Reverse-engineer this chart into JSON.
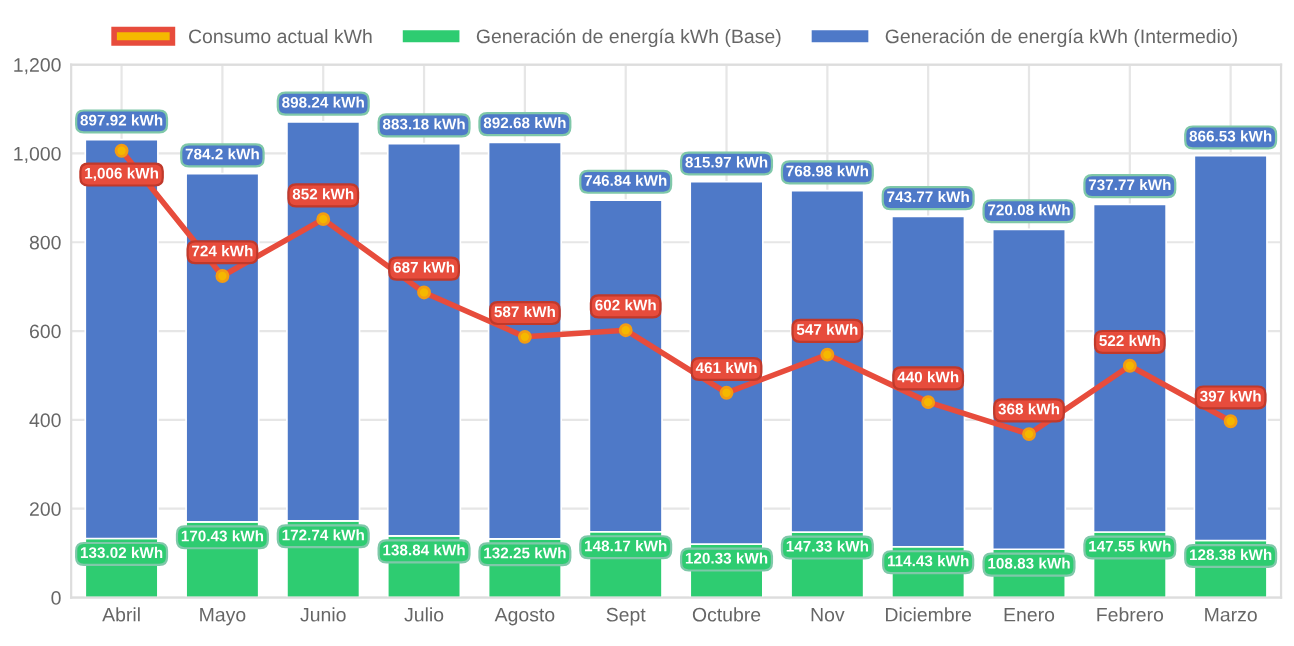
{
  "chart_data": {
    "type": "bar",
    "stacked": true,
    "categories": [
      "Abril",
      "Mayo",
      "Junio",
      "Julio",
      "Agosto",
      "Sept",
      "Octubre",
      "Nov",
      "Diciembre",
      "Enero",
      "Febrero",
      "Marzo"
    ],
    "series": [
      {
        "name": "Consumo actual kWh",
        "type": "line",
        "color": "#e74c3c",
        "marker": "circle",
        "values": [
          1006,
          724,
          852,
          687,
          587,
          602,
          461,
          547,
          440,
          368,
          522,
          397
        ],
        "value_labels": [
          "1,006 kWh",
          "724 kWh",
          "852 kWh",
          "687 kWh",
          "587 kWh",
          "602 kWh",
          "461 kWh",
          "547 kWh",
          "440 kWh",
          "368 kWh",
          "522 kWh",
          "397 kWh"
        ]
      },
      {
        "name": "Generación de energía kWh (Base)",
        "color": "#2ecc71",
        "values": [
          133.02,
          170.43,
          172.74,
          138.84,
          132.25,
          148.17,
          120.33,
          147.33,
          114.43,
          108.83,
          147.55,
          128.38
        ],
        "value_labels": [
          "133.02 kWh",
          "170.43 kWh",
          "172.74 kWh",
          "138.84 kWh",
          "132.25 kWh",
          "148.17 kWh",
          "120.33 kWh",
          "147.33 kWh",
          "114.43 kWh",
          "108.83 kWh",
          "147.55 kWh",
          "128.38 kWh"
        ]
      },
      {
        "name": "Generación de energía kWh (Intermedio)",
        "color": "#4e79c8",
        "values": [
          897.92,
          784.2,
          898.24,
          883.18,
          892.68,
          746.84,
          815.97,
          768.98,
          743.77,
          720.08,
          737.77,
          866.53
        ],
        "value_labels": [
          "897.92 kWh",
          "784.2 kWh",
          "898.24 kWh",
          "883.18 kWh",
          "892.68 kWh",
          "746.84 kWh",
          "815.97 kWh",
          "768.98 kWh",
          "743.77 kWh",
          "720.08 kWh",
          "737.77 kWh",
          "866.53 kWh"
        ]
      }
    ],
    "ylim": [
      0,
      1200
    ],
    "yticks": [
      0,
      200,
      400,
      600,
      800,
      {
        "value": 1000,
        "label": "1,000"
      },
      {
        "value": 1200,
        "label": "1,200"
      }
    ],
    "grid": true,
    "legend": "top"
  }
}
